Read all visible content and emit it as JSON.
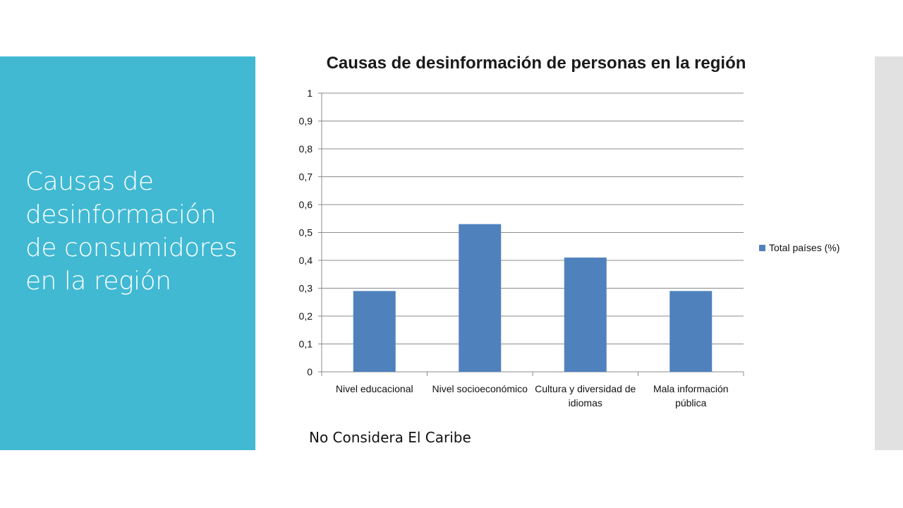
{
  "slide": {
    "side_title": "Causas de desinformación de consumidores en la región",
    "note": "No Considera El Caribe"
  },
  "chart_data": {
    "type": "bar",
    "title": "Causas de desinformación de personas en la región",
    "categories": [
      [
        "Nivel educacional"
      ],
      [
        "Nivel socioeconómico"
      ],
      [
        "Cultura y diversidad de",
        "idiomas"
      ],
      [
        "Mala información",
        "pública"
      ]
    ],
    "series": [
      {
        "name": "Total países (%)",
        "values": [
          0.29,
          0.53,
          0.41,
          0.29
        ],
        "color": "#4f81bd"
      }
    ],
    "ylim": [
      0,
      1
    ],
    "yticks": [
      "0",
      "0,1",
      "0,2",
      "0,3",
      "0,4",
      "0,5",
      "0,6",
      "0,7",
      "0,8",
      "0,9",
      "1"
    ],
    "grid": true,
    "legend_position": "right"
  },
  "colors": {
    "side_panel": "#41b9d3",
    "right_strip": "#e1e1e1",
    "bar": "#4f81bd"
  }
}
